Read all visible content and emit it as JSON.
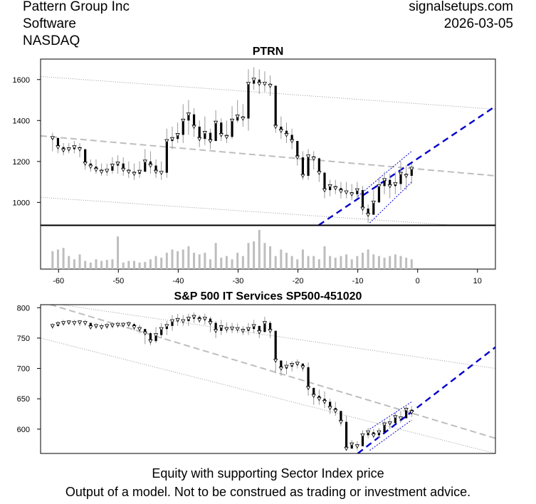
{
  "header": {
    "company": "Pattern Group Inc",
    "sector": "Software",
    "exchange": "NASDAQ",
    "site": "signalsetups.com",
    "date": "2026-03-05"
  },
  "footer": {
    "line1": "Equity with supporting Sector Index price",
    "line2": "Output of a model. Not to be construed as trading or investment advice."
  },
  "colors": {
    "candle": "#000000",
    "volume": "#bebebe",
    "regression": "#bebebe",
    "channel": "#999999",
    "trend": "#0000cc"
  },
  "chart_data": [
    {
      "type": "candlestick",
      "title": "PTRN",
      "x_range": [
        -63,
        13
      ],
      "y_range": [
        890,
        1700
      ],
      "xticks": [
        -60,
        -50,
        -40,
        -30,
        -20,
        -10,
        0,
        10
      ],
      "yticks": [
        1000,
        1200,
        1400,
        1600
      ],
      "close": [
        1315,
        1270,
        1255,
        1260,
        1270,
        1260,
        1190,
        1175,
        1160,
        1150,
        1155,
        1180,
        1190,
        1160,
        1150,
        1140,
        1150,
        1200,
        1180,
        1150,
        1145,
        1300,
        1310,
        1330,
        1400,
        1430,
        1370,
        1310,
        1340,
        1300,
        1390,
        1330,
        1320,
        1400,
        1420,
        1410,
        1580,
        1600,
        1580,
        1580,
        1570,
        1370,
        1350,
        1330,
        1300,
        1220,
        1130,
        1225,
        1215,
        1145,
        1060,
        1080,
        1070,
        1055,
        1050,
        1040,
        1060,
        970,
        940,
        1000,
        1080,
        1110,
        1080,
        1090,
        1140,
        1130,
        1165
      ],
      "high": [
        1340,
        1300,
        1290,
        1290,
        1300,
        1290,
        1230,
        1210,
        1210,
        1190,
        1190,
        1220,
        1230,
        1220,
        1200,
        1190,
        1200,
        1260,
        1250,
        1210,
        1200,
        1360,
        1370,
        1390,
        1480,
        1500,
        1460,
        1400,
        1420,
        1360,
        1450,
        1410,
        1400,
        1470,
        1500,
        1480,
        1650,
        1660,
        1650,
        1640,
        1620,
        1560,
        1420,
        1390,
        1360,
        1300,
        1250,
        1260,
        1250,
        1220,
        1150,
        1110,
        1110,
        1100,
        1100,
        1090,
        1100,
        1080,
        990,
        1060,
        1120,
        1150,
        1140,
        1150,
        1200,
        1180,
        1190
      ],
      "low": [
        1250,
        1240,
        1230,
        1240,
        1240,
        1220,
        1160,
        1150,
        1140,
        1130,
        1130,
        1140,
        1140,
        1130,
        1120,
        1110,
        1120,
        1150,
        1140,
        1120,
        1110,
        1120,
        1260,
        1290,
        1290,
        1330,
        1320,
        1270,
        1280,
        1260,
        1300,
        1300,
        1290,
        1310,
        1390,
        1370,
        1350,
        1550,
        1530,
        1540,
        1520,
        1340,
        1310,
        1290,
        1260,
        1180,
        1110,
        1110,
        1160,
        1100,
        1020,
        1030,
        1040,
        1020,
        1020,
        1010,
        1020,
        940,
        900,
        950,
        1000,
        1040,
        1020,
        1040,
        1060,
        1060,
        1090
      ],
      "volume": [
        55,
        60,
        65,
        40,
        30,
        45,
        25,
        20,
        30,
        25,
        28,
        30,
        100,
        20,
        25,
        25,
        20,
        22,
        30,
        40,
        35,
        50,
        60,
        55,
        60,
        70,
        50,
        45,
        50,
        30,
        80,
        35,
        40,
        30,
        50,
        40,
        80,
        85,
        120,
        80,
        70,
        40,
        60,
        50,
        40,
        30,
        60,
        40,
        40,
        30,
        70,
        40,
        35,
        40,
        45,
        30,
        40,
        50,
        60,
        45,
        40,
        35,
        40,
        45,
        40,
        35,
        30
      ],
      "regression": {
        "start": 1325,
        "end": 1130
      },
      "channel_upper": {
        "start": 1615,
        "end": 1455
      },
      "channel_lower": {
        "start": 1025,
        "end": 875
      },
      "trend_line": {
        "x0": -18,
        "y0": 860,
        "x1": 13,
        "y1": 1470
      },
      "short_channel_upper": {
        "x0": -10,
        "y0": 1030,
        "x1": -1,
        "y1": 1250
      },
      "short_channel_lower": {
        "x0": -8,
        "y0": 900,
        "x1": -1,
        "y1": 1100
      }
    },
    {
      "type": "candlestick",
      "title": "S&P 500 IT Services SP500-451020",
      "x_range": [
        -63,
        13
      ],
      "y_range": [
        560,
        805
      ],
      "yticks": [
        600,
        650,
        700,
        750,
        800
      ],
      "close": [
        770,
        773,
        775,
        776,
        775,
        776,
        775,
        768,
        770,
        768,
        770,
        771,
        772,
        772,
        773,
        768,
        765,
        758,
        745,
        755,
        765,
        770,
        778,
        780,
        778,
        782,
        785,
        780,
        782,
        775,
        762,
        768,
        765,
        766,
        765,
        762,
        765,
        770,
        760,
        775,
        762,
        713,
        700,
        703,
        706,
        708,
        702,
        668,
        655,
        650,
        645,
        635,
        630,
        612,
        568,
        575,
        572,
        590,
        595,
        590,
        595,
        608,
        610,
        620,
        618,
        632,
        628
      ],
      "high": [
        775,
        778,
        780,
        780,
        780,
        780,
        780,
        775,
        775,
        774,
        775,
        776,
        777,
        777,
        778,
        775,
        772,
        765,
        760,
        768,
        775,
        778,
        788,
        790,
        788,
        790,
        792,
        788,
        790,
        785,
        778,
        780,
        776,
        775,
        774,
        770,
        775,
        780,
        770,
        785,
        778,
        715,
        712,
        712,
        712,
        715,
        708,
        710,
        668,
        665,
        662,
        650,
        645,
        630,
        622,
        582,
        580,
        598,
        602,
        600,
        602,
        615,
        618,
        628,
        630,
        640,
        638
      ],
      "low": [
        765,
        770,
        770,
        772,
        770,
        770,
        770,
        765,
        765,
        764,
        765,
        766,
        767,
        767,
        768,
        762,
        758,
        740,
        738,
        742,
        750,
        755,
        762,
        770,
        770,
        770,
        775,
        775,
        772,
        760,
        750,
        755,
        758,
        758,
        758,
        755,
        755,
        758,
        750,
        760,
        750,
        692,
        688,
        690,
        695,
        700,
        695,
        655,
        640,
        640,
        635,
        625,
        622,
        605,
        565,
        568,
        565,
        575,
        585,
        585,
        585,
        600,
        600,
        610,
        610,
        620,
        620
      ],
      "regression": {
        "start": 810,
        "end": 585
      },
      "channel_upper": {
        "start": 810,
        "end": 700
      },
      "channel_lower": {
        "start": 750,
        "end": 560
      },
      "trend_line": {
        "x0": -10,
        "y0": 560,
        "x1": 13,
        "y1": 735
      },
      "short_channel_upper": {
        "x0": -8,
        "y0": 600,
        "x1": -1,
        "y1": 645
      },
      "short_channel_lower": {
        "x0": -8,
        "y0": 565,
        "x1": -1,
        "y1": 615
      }
    }
  ]
}
